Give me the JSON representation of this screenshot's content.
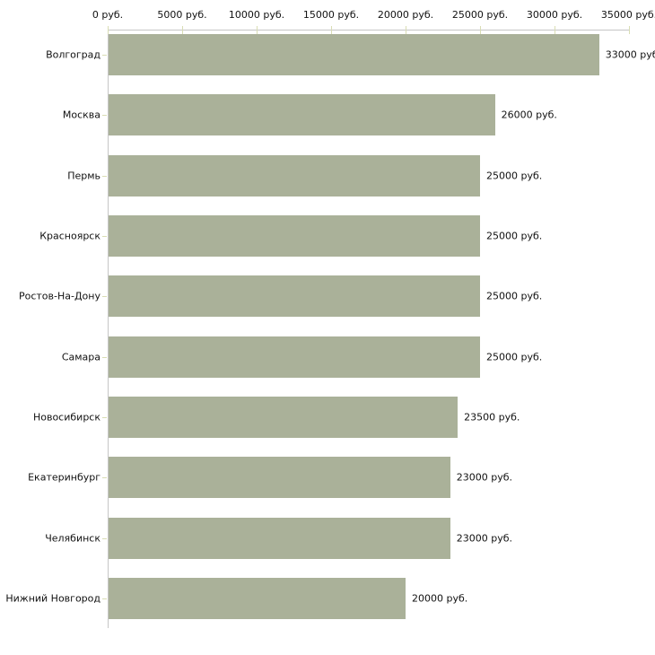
{
  "chart_data": {
    "type": "bar",
    "orientation": "horizontal",
    "title": "",
    "categories": [
      "Волгоград",
      "Москва",
      "Пермь",
      "Красноярск",
      "Ростов-На-Дону",
      "Самара",
      "Новосибирск",
      "Екатеринбург",
      "Челябинск",
      "Нижний Новгород"
    ],
    "values": [
      33000,
      26000,
      25000,
      25000,
      25000,
      25000,
      23500,
      23000,
      23000,
      20000
    ],
    "value_labels": [
      "33000 руб.",
      "26000 руб.",
      "25000 руб.",
      "25000 руб.",
      "25000 руб.",
      "25000 руб.",
      "23500 руб.",
      "23000 руб.",
      "23000 руб.",
      "20000 руб."
    ],
    "x_axis": {
      "position": "top",
      "unit": "руб.",
      "tick_values": [
        0,
        5000,
        10000,
        15000,
        20000,
        25000,
        30000,
        35000
      ],
      "tick_labels": [
        "0 руб.",
        "5000 руб.",
        "10000 руб.",
        "15000 руб.",
        "20000 руб.",
        "25000 руб.",
        "30000 руб.",
        "35000 руб."
      ],
      "range": [
        0,
        35000
      ]
    },
    "grid": false,
    "legend": false,
    "colors": {
      "bar": "#aab199",
      "tick": "#d9ddb4",
      "axis_line": "#c6c6c6",
      "label_text": "#111111",
      "background": "#ffffff"
    }
  }
}
